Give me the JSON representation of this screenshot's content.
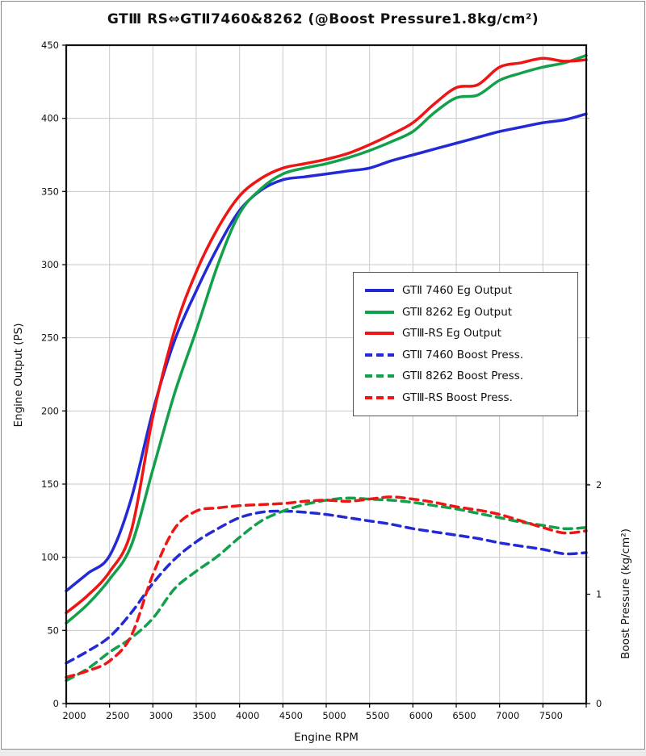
{
  "title": "GTⅢ RS⇔GTⅡ7460&8262 (@Boost Pressure1.8kg/cm²)",
  "axes": {
    "x_label": "Engine RPM",
    "y_left_label": "Engine Output (PS)",
    "y_right_label": "Boost Pressure (kg/cm²)",
    "x_ticks": [
      2000,
      2500,
      3000,
      3500,
      4000,
      4500,
      5000,
      5500,
      6000,
      6500,
      7000,
      7500
    ],
    "y_left_ticks": [
      0,
      50,
      100,
      150,
      200,
      250,
      300,
      350,
      400,
      450
    ],
    "y_right_ticks": [
      0,
      1,
      2
    ],
    "x_range": [
      2000,
      8000
    ],
    "y_left_range": [
      0,
      450
    ],
    "y_right_range": [
      0,
      2
    ]
  },
  "colors": {
    "blue": "#2429d6",
    "green": "#13a04b",
    "red": "#ee1515",
    "grid": "#c9c9c9",
    "frame": "#111111"
  },
  "legend": {
    "entries": [
      {
        "label": "GTⅡ 7460 Eg Output",
        "color": "#2429d6",
        "dash": false
      },
      {
        "label": "GTⅡ 8262 Eg Output",
        "color": "#13a04b",
        "dash": false
      },
      {
        "label": "GTⅢ-RS Eg Output",
        "color": "#ee1515",
        "dash": false
      },
      {
        "label": "GTⅡ 7460 Boost Press.",
        "color": "#2429d6",
        "dash": true
      },
      {
        "label": "GTⅡ 8262 Boost Press.",
        "color": "#13a04b",
        "dash": true
      },
      {
        "label": "GTⅢ-RS Boost Press.",
        "color": "#ee1515",
        "dash": true
      }
    ]
  },
  "chart_data": {
    "type": "line",
    "title": "GTⅢ RS⇔GTⅡ7460&8262 (@Boost Pressure1.8kg/cm²)",
    "xlabel": "Engine RPM",
    "ylabel_left": "Engine Output (PS)",
    "ylabel_right": "Boost Pressure (kg/cm²)",
    "x_range": [
      2000,
      8000
    ],
    "ylim_left": [
      0,
      450
    ],
    "grid": true,
    "legend_position": "center-right",
    "x": [
      2000,
      2250,
      2500,
      2750,
      3000,
      3250,
      3500,
      3750,
      4000,
      4250,
      4500,
      4750,
      5000,
      5250,
      5500,
      5750,
      6000,
      6250,
      6500,
      6750,
      7000,
      7250,
      7500,
      7750,
      8000
    ],
    "series": [
      {
        "name": "GTⅡ 7460 Eg Output",
        "axis": "left",
        "style": "solid",
        "color": "#2429d6",
        "values": [
          77,
          89,
          101,
          140,
          200,
          248,
          282,
          312,
          337,
          351,
          358,
          360,
          362,
          364,
          366,
          371,
          375,
          379,
          383,
          387,
          391,
          394,
          397,
          399,
          403
        ]
      },
      {
        "name": "GTⅡ 8262 Eg Output",
        "axis": "left",
        "style": "solid",
        "color": "#13a04b",
        "values": [
          55,
          68,
          85,
          108,
          160,
          212,
          255,
          300,
          335,
          352,
          362,
          366,
          369,
          373,
          378,
          384,
          391,
          404,
          414,
          416,
          426,
          431,
          435,
          438,
          443
        ]
      },
      {
        "name": "GTⅢ-RS Eg Output",
        "axis": "left",
        "style": "solid",
        "color": "#ee1515",
        "values": [
          62,
          74,
          90,
          118,
          196,
          255,
          295,
          325,
          347,
          359,
          366,
          369,
          372,
          376,
          382,
          389,
          397,
          410,
          421,
          423,
          435,
          438,
          441,
          439,
          440
        ]
      },
      {
        "name": "GTⅡ 7460 Boost Press.",
        "axis": "right",
        "style": "dashed",
        "color": "#2429d6",
        "values": [
          0.37,
          0.48,
          0.61,
          0.83,
          1.1,
          1.32,
          1.48,
          1.6,
          1.7,
          1.75,
          1.76,
          1.75,
          1.73,
          1.7,
          1.67,
          1.64,
          1.6,
          1.57,
          1.54,
          1.51,
          1.47,
          1.44,
          1.41,
          1.37,
          1.38
        ]
      },
      {
        "name": "GTⅡ 8262 Boost Press.",
        "axis": "right",
        "style": "dashed",
        "color": "#13a04b",
        "values": [
          0.21,
          0.32,
          0.47,
          0.6,
          0.78,
          1.05,
          1.21,
          1.35,
          1.52,
          1.67,
          1.76,
          1.82,
          1.86,
          1.88,
          1.87,
          1.86,
          1.84,
          1.81,
          1.78,
          1.74,
          1.7,
          1.66,
          1.63,
          1.6,
          1.61
        ]
      },
      {
        "name": "GTⅢ-RS Boost Press.",
        "axis": "right",
        "style": "dashed",
        "color": "#ee1515",
        "values": [
          0.24,
          0.3,
          0.39,
          0.62,
          1.18,
          1.6,
          1.76,
          1.79,
          1.81,
          1.82,
          1.83,
          1.85,
          1.86,
          1.85,
          1.87,
          1.89,
          1.87,
          1.84,
          1.8,
          1.77,
          1.73,
          1.67,
          1.61,
          1.56,
          1.58
        ]
      }
    ]
  }
}
